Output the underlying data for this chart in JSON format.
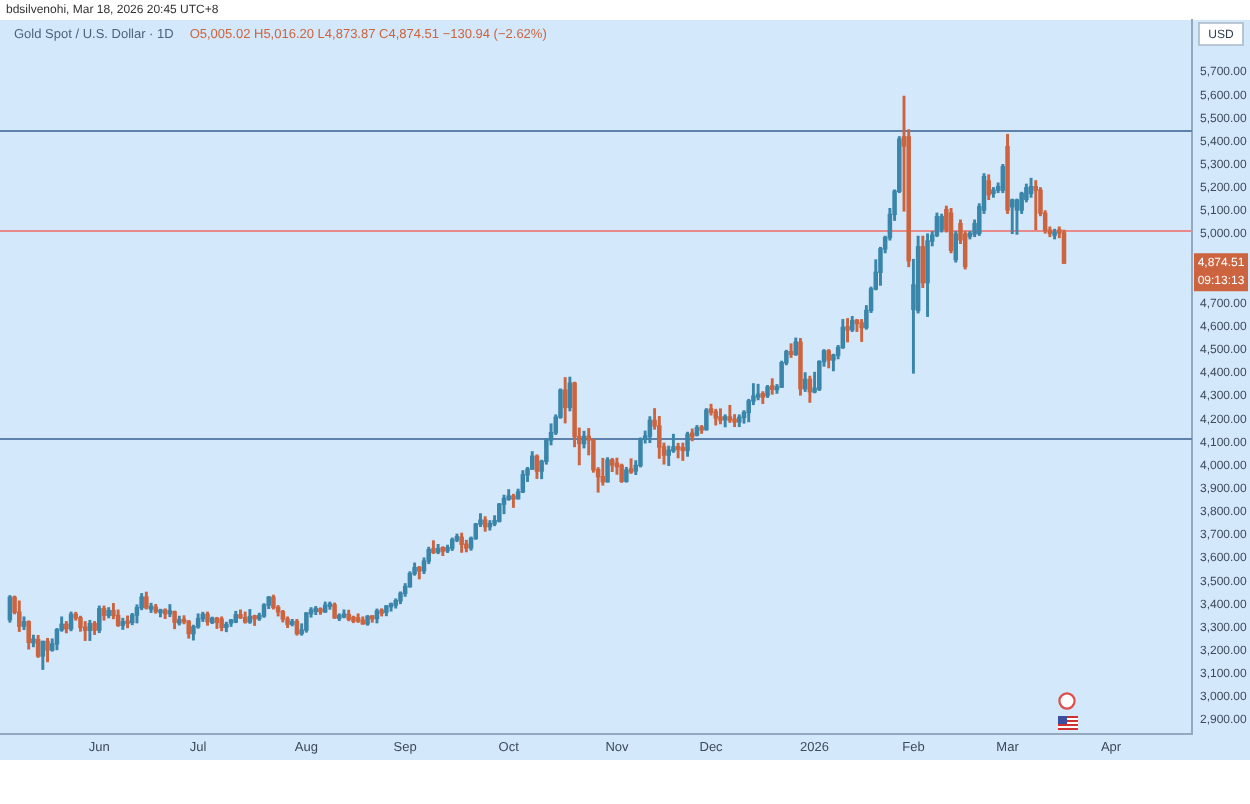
{
  "chart_data": {
    "type": "candlestick",
    "title": "Gold Spot / U.S. Dollar · 1D",
    "subtitle": "O5,005.02 H5,016.20 L4,873.87 C4,874.51 −130.94 (−2.62%)",
    "ylabel": "USD",
    "categories": [
      null,
      null,
      null,
      null,
      null,
      null,
      null,
      null,
      null,
      null,
      null,
      null,
      null,
      null,
      null,
      null,
      null,
      null,
      null,
      "Jun",
      null,
      null,
      null,
      null,
      null,
      null,
      null,
      null,
      null,
      null,
      null,
      null,
      null,
      null,
      null,
      null,
      null,
      null,
      null,
      null,
      "Jul",
      null,
      null,
      null,
      null,
      null,
      null,
      null,
      null,
      null,
      null,
      null,
      null,
      null,
      null,
      null,
      null,
      null,
      null,
      null,
      null,
      null,
      null,
      "Aug",
      null,
      null,
      null,
      null,
      null,
      null,
      null,
      null,
      null,
      null,
      null,
      null,
      null,
      null,
      null,
      null,
      null,
      null,
      null,
      null,
      "Sep",
      null,
      null,
      null,
      null,
      null,
      null,
      null,
      null,
      null,
      null,
      null,
      null,
      null,
      null,
      null,
      null,
      null,
      null,
      null,
      null,
      null,
      "Oct",
      null,
      null,
      null,
      null,
      null,
      null,
      null,
      null,
      null,
      null,
      null,
      null,
      null,
      null,
      null,
      null,
      null,
      null,
      null,
      null,
      null,
      null,
      "Nov",
      null,
      null,
      null,
      null,
      null,
      null,
      null,
      null,
      null,
      null,
      null,
      null,
      null,
      null,
      null,
      null,
      null,
      null,
      null,
      "Dec",
      null,
      null,
      null,
      null,
      null,
      null,
      null,
      null,
      null,
      null,
      null,
      null,
      null,
      null,
      null,
      null,
      null,
      null,
      null,
      null,
      null,
      "2026",
      null,
      null,
      null,
      null,
      null,
      null,
      null,
      null,
      null,
      null,
      null,
      null,
      null,
      null,
      null,
      null,
      null,
      null,
      null,
      null,
      "Feb",
      null,
      null,
      null,
      null,
      null,
      null,
      null,
      null,
      null,
      null,
      null,
      null,
      null,
      null,
      null,
      null,
      null,
      null,
      null,
      "Mar",
      null,
      null,
      null,
      null,
      null,
      null,
      null,
      null,
      null,
      null,
      null,
      null,
      null,
      null,
      null,
      null,
      null,
      null,
      null,
      null,
      null,
      "Apr",
      null,
      null,
      null,
      null,
      null,
      null,
      null,
      null,
      null,
      null,
      null,
      null,
      null,
      null,
      null,
      null
    ],
    "ohlc": [
      [
        3334,
        3437,
        3324,
        3431
      ],
      [
        3431,
        3435,
        3360,
        3366
      ],
      [
        3366,
        3414,
        3284,
        3306
      ],
      [
        3306,
        3345,
        3292,
        3325
      ],
      [
        3325,
        3328,
        3208,
        3236
      ],
      [
        3234,
        3266,
        3218,
        3250
      ],
      [
        3248,
        3265,
        3172,
        3177
      ],
      [
        3177,
        3240,
        3120,
        3240
      ],
      [
        3240,
        3252,
        3153,
        3203
      ],
      [
        3203,
        3250,
        3199,
        3229
      ],
      [
        3229,
        3295,
        3205,
        3290
      ],
      [
        3290,
        3345,
        3285,
        3314
      ],
      [
        3314,
        3325,
        3278,
        3295
      ],
      [
        3295,
        3366,
        3287,
        3357
      ],
      [
        3357,
        3365,
        3333,
        3342
      ],
      [
        3342,
        3348,
        3285,
        3301
      ],
      [
        3301,
        3325,
        3245,
        3288
      ],
      [
        3288,
        3330,
        3245,
        3317
      ],
      [
        3317,
        3325,
        3271,
        3289
      ],
      [
        3289,
        3392,
        3279,
        3381
      ],
      [
        3381,
        3392,
        3333,
        3353
      ],
      [
        3353,
        3385,
        3343,
        3373
      ],
      [
        3373,
        3403,
        3339,
        3352
      ],
      [
        3352,
        3375,
        3306,
        3310
      ],
      [
        3310,
        3339,
        3293,
        3325
      ],
      [
        3328,
        3349,
        3300,
        3318
      ],
      [
        3322,
        3360,
        3313,
        3354
      ],
      [
        3354,
        3397,
        3321,
        3386
      ],
      [
        3386,
        3446,
        3378,
        3432
      ],
      [
        3432,
        3452,
        3381,
        3385
      ],
      [
        3380,
        3404,
        3366,
        3392
      ],
      [
        3388,
        3399,
        3363,
        3369
      ],
      [
        3365,
        3378,
        3347,
        3375
      ],
      [
        3375,
        3380,
        3340,
        3360
      ],
      [
        3360,
        3398,
        3348,
        3372
      ],
      [
        3368,
        3370,
        3296,
        3323
      ],
      [
        3320,
        3348,
        3312,
        3333
      ],
      [
        3335,
        3350,
        3317,
        3325
      ],
      [
        3327,
        3329,
        3255,
        3274
      ],
      [
        3274,
        3309,
        3247,
        3303
      ],
      [
        3303,
        3358,
        3298,
        3338
      ],
      [
        3338,
        3365,
        3327,
        3357
      ],
      [
        3357,
        3366,
        3311,
        3326
      ],
      [
        3322,
        3344,
        3318,
        3340
      ],
      [
        3340,
        3343,
        3297,
        3322
      ],
      [
        3336,
        3345,
        3287,
        3301
      ],
      [
        3301,
        3322,
        3283,
        3313
      ],
      [
        3320,
        3334,
        3306,
        3332
      ],
      [
        3324,
        3369,
        3322,
        3355
      ],
      [
        3355,
        3375,
        3340,
        3343
      ],
      [
        3343,
        3366,
        3320,
        3324
      ],
      [
        3324,
        3377,
        3319,
        3347
      ],
      [
        3350,
        3352,
        3310,
        3338
      ],
      [
        3338,
        3361,
        3332,
        3352
      ],
      [
        3350,
        3402,
        3345,
        3397
      ],
      [
        3397,
        3433,
        3383,
        3431
      ],
      [
        3431,
        3439,
        3381,
        3387
      ],
      [
        3387,
        3394,
        3351,
        3368
      ],
      [
        3368,
        3373,
        3325,
        3337
      ],
      [
        3337,
        3345,
        3301,
        3314
      ],
      [
        3314,
        3334,
        3308,
        3326
      ],
      [
        3326,
        3334,
        3268,
        3274
      ],
      [
        3274,
        3315,
        3268,
        3289
      ],
      [
        3289,
        3363,
        3281,
        3363
      ],
      [
        3360,
        3385,
        3346,
        3376
      ],
      [
        3370,
        3390,
        3357,
        3382
      ],
      [
        3380,
        3384,
        3358,
        3368
      ],
      [
        3368,
        3409,
        3366,
        3396
      ],
      [
        3392,
        3409,
        3380,
        3402
      ],
      [
        3398,
        3405,
        3341,
        3342
      ],
      [
        3340,
        3358,
        3331,
        3352
      ],
      [
        3346,
        3375,
        3343,
        3358
      ],
      [
        3356,
        3374,
        3330,
        3336
      ],
      [
        3344,
        3348,
        3322,
        3328
      ],
      [
        3342,
        3358,
        3323,
        3328
      ],
      [
        3332,
        3345,
        3315,
        3316
      ],
      [
        3316,
        3351,
        3311,
        3348
      ],
      [
        3350,
        3351,
        3324,
        3338
      ],
      [
        3339,
        3379,
        3321,
        3371
      ],
      [
        3375,
        3380,
        3351,
        3362
      ],
      [
        3366,
        3394,
        3352,
        3393
      ],
      [
        3390,
        3405,
        3372,
        3402
      ],
      [
        3397,
        3423,
        3385,
        3416
      ],
      [
        3416,
        3453,
        3404,
        3448
      ],
      [
        3448,
        3489,
        3436,
        3477
      ],
      [
        3477,
        3540,
        3475,
        3533
      ],
      [
        3533,
        3578,
        3527,
        3559
      ],
      [
        3559,
        3563,
        3511,
        3545
      ],
      [
        3545,
        3600,
        3534,
        3587
      ],
      [
        3587,
        3646,
        3577,
        3636
      ],
      [
        3640,
        3674,
        3621,
        3624
      ],
      [
        3626,
        3658,
        3620,
        3641
      ],
      [
        3645,
        3648,
        3612,
        3630
      ],
      [
        3632,
        3655,
        3625,
        3645
      ],
      [
        3643,
        3686,
        3634,
        3679
      ],
      [
        3678,
        3703,
        3672,
        3692
      ],
      [
        3690,
        3707,
        3626,
        3660
      ],
      [
        3660,
        3676,
        3628,
        3644
      ],
      [
        3644,
        3690,
        3635,
        3685
      ],
      [
        3685,
        3749,
        3682,
        3747
      ],
      [
        3747,
        3791,
        3737,
        3764
      ],
      [
        3764,
        3778,
        3717,
        3736
      ],
      [
        3736,
        3761,
        3722,
        3749
      ],
      [
        3748,
        3782,
        3741,
        3762
      ],
      [
        3760,
        3835,
        3757,
        3833
      ],
      [
        3833,
        3871,
        3793,
        3858
      ],
      [
        3855,
        3895,
        3851,
        3868
      ],
      [
        3868,
        3875,
        3820,
        3856
      ],
      [
        3857,
        3897,
        3856,
        3886
      ],
      [
        3886,
        3977,
        3884,
        3960
      ],
      [
        3960,
        3991,
        3932,
        3985
      ],
      [
        3985,
        4059,
        3984,
        4040
      ],
      [
        4040,
        4045,
        3945,
        3976
      ],
      [
        3976,
        4022,
        3944,
        4018
      ],
      [
        4018,
        4116,
        4007,
        4110
      ],
      [
        4110,
        4179,
        4090,
        4142
      ],
      [
        4142,
        4218,
        4135,
        4209
      ],
      [
        4209,
        4330,
        4205,
        4326
      ],
      [
        4326,
        4379,
        4185,
        4251
      ],
      [
        4251,
        4381,
        4237,
        4356
      ],
      [
        4356,
        4359,
        4082,
        4125
      ],
      [
        4125,
        4161,
        4004,
        4095
      ],
      [
        4095,
        4147,
        4077,
        4126
      ],
      [
        4126,
        4159,
        4047,
        4111
      ],
      [
        4111,
        4112,
        3972,
        3982
      ],
      [
        3982,
        3990,
        3886,
        3952
      ],
      [
        3952,
        4030,
        3916,
        3930
      ],
      [
        3930,
        4033,
        3929,
        4024
      ],
      [
        4024,
        4030,
        3975,
        4002
      ],
      [
        4010,
        4031,
        3963,
        3995
      ],
      [
        4000,
        4005,
        3928,
        3932
      ],
      [
        3932,
        3991,
        3929,
        3980
      ],
      [
        3985,
        4028,
        3967,
        3972
      ],
      [
        3977,
        4020,
        3962,
        4000
      ],
      [
        4000,
        4118,
        3995,
        4115
      ],
      [
        4115,
        4148,
        4098,
        4127
      ],
      [
        4127,
        4210,
        4100,
        4195
      ],
      [
        4195,
        4245,
        4158,
        4171
      ],
      [
        4171,
        4211,
        4032,
        4080
      ],
      [
        4080,
        4096,
        4007,
        4045
      ],
      [
        4045,
        4083,
        4001,
        4066
      ],
      [
        4064,
        4134,
        4058,
        4080
      ],
      [
        4082,
        4095,
        4034,
        4070
      ],
      [
        4077,
        4096,
        4023,
        4065
      ],
      [
        4065,
        4143,
        4041,
        4135
      ],
      [
        4140,
        4157,
        4108,
        4125
      ],
      [
        4132,
        4172,
        4129,
        4163
      ],
      [
        4166,
        4172,
        4140,
        4154
      ],
      [
        4155,
        4245,
        4154,
        4239
      ],
      [
        4245,
        4264,
        4219,
        4230
      ],
      [
        4232,
        4242,
        4176,
        4206
      ],
      [
        4210,
        4244,
        4181,
        4196
      ],
      [
        4198,
        4218,
        4168,
        4210
      ],
      [
        4210,
        4259,
        4187,
        4196
      ],
      [
        4200,
        4219,
        4169,
        4188
      ],
      [
        4189,
        4218,
        4169,
        4208
      ],
      [
        4208,
        4236,
        4184,
        4229
      ],
      [
        4229,
        4285,
        4190,
        4279
      ],
      [
        4279,
        4353,
        4264,
        4300
      ],
      [
        4296,
        4350,
        4285,
        4308
      ],
      [
        4310,
        4318,
        4269,
        4296
      ],
      [
        4302,
        4345,
        4295,
        4339
      ],
      [
        4344,
        4374,
        4309,
        4330
      ],
      [
        4328,
        4349,
        4313,
        4340
      ],
      [
        4339,
        4450,
        4338,
        4444
      ],
      [
        4444,
        4497,
        4436,
        4492
      ],
      [
        4492,
        4525,
        4468,
        4480
      ],
      [
        4480,
        4550,
        4477,
        4533
      ],
      [
        4533,
        4548,
        4305,
        4332
      ],
      [
        4332,
        4400,
        4321,
        4372
      ],
      [
        4372,
        4385,
        4274,
        4319
      ],
      [
        4318,
        4402,
        4315,
        4334
      ],
      [
        4330,
        4452,
        4325,
        4449
      ],
      [
        4449,
        4500,
        4430,
        4495
      ],
      [
        4495,
        4500,
        4423,
        4456
      ],
      [
        4456,
        4480,
        4410,
        4477
      ],
      [
        4477,
        4518,
        4462,
        4510
      ],
      [
        4510,
        4630,
        4507,
        4597
      ],
      [
        4600,
        4634,
        4535,
        4586
      ],
      [
        4587,
        4643,
        4580,
        4626
      ],
      [
        4628,
        4630,
        4580,
        4614
      ],
      [
        4616,
        4630,
        4537,
        4596
      ],
      [
        4596,
        4690,
        4590,
        4670
      ],
      [
        4670,
        4770,
        4662,
        4763
      ],
      [
        4763,
        4888,
        4760,
        4835
      ],
      [
        4835,
        4942,
        4780,
        4936
      ],
      [
        4936,
        4990,
        4920,
        4985
      ],
      [
        4985,
        5110,
        4975,
        5085
      ],
      [
        5085,
        5190,
        5060,
        5185
      ],
      [
        5185,
        5420,
        5180,
        5410
      ],
      [
        5420,
        5595,
        5100,
        5380
      ],
      [
        5420,
        5450,
        4860,
        4885
      ],
      [
        4675,
        4890,
        4400,
        4780
      ],
      [
        4670,
        4990,
        4660,
        4945
      ],
      [
        4945,
        4990,
        4770,
        4790
      ],
      [
        4790,
        5000,
        4645,
        4970
      ],
      [
        4970,
        5010,
        4950,
        4995
      ],
      [
        4995,
        5090,
        4990,
        5075
      ],
      [
        5020,
        5085,
        5010,
        5075
      ],
      [
        5105,
        5120,
        5010,
        5020
      ],
      [
        5090,
        5110,
        4920,
        4930
      ],
      [
        4890,
        5010,
        4880,
        5000
      ],
      [
        5045,
        5060,
        4960,
        4975
      ],
      [
        5000,
        5010,
        4850,
        4860
      ],
      [
        4990,
        5010,
        4980,
        5003
      ],
      [
        5000,
        5060,
        4990,
        5045
      ],
      [
        5003,
        5130,
        4995,
        5118
      ],
      [
        5104,
        5260,
        5090,
        5248
      ],
      [
        5230,
        5255,
        5150,
        5170
      ],
      [
        5176,
        5200,
        5160,
        5190
      ],
      [
        5190,
        5220,
        5180,
        5205
      ],
      [
        5190,
        5300,
        5180,
        5291
      ],
      [
        5378,
        5430,
        5090,
        5104
      ],
      [
        5118,
        5150,
        5003,
        5147
      ],
      [
        5104,
        5150,
        5000,
        5147
      ],
      [
        5104,
        5180,
        5090,
        5176
      ],
      [
        5150,
        5215,
        5140,
        5200
      ],
      [
        5176,
        5240,
        5160,
        5205
      ],
      [
        5205,
        5230,
        5020,
        5190
      ],
      [
        5190,
        5200,
        5080,
        5090
      ],
      [
        5090,
        5100,
        5005,
        5017
      ],
      [
        5017,
        5030,
        4990,
        5003
      ],
      [
        4995,
        5020,
        4980,
        5008
      ],
      [
        5018,
        5030,
        4985,
        5005
      ],
      [
        5005.02,
        5016.2,
        4873.87,
        4874.51
      ],
      null,
      null,
      null,
      null,
      null,
      null,
      null,
      null,
      null,
      null,
      null,
      null,
      null,
      null,
      null,
      null,
      null,
      null,
      null,
      null,
      null,
      null,
      null,
      null,
      null,
      null
    ],
    "colors": [
      "#3a85aa",
      "#cc6440",
      "#cc6440",
      "#3a85aa",
      "#cc6440",
      "#3a85aa",
      "#cc6440",
      "#3a85aa",
      "#cc6440",
      "#3a85aa",
      "#3a85aa",
      "#3a85aa",
      "#cc6440",
      "#3a85aa",
      "#cc6440",
      "#cc6440",
      "#cc6440",
      "#3a85aa",
      "#cc6440",
      "#3a85aa",
      "#cc6440",
      "#3a85aa",
      "#cc6440",
      "#cc6440",
      "#3a85aa",
      "#cc6440",
      "#3a85aa",
      "#3a85aa",
      "#3a85aa",
      "#cc6440",
      "#3a85aa",
      "#cc6440",
      "#3a85aa",
      "#cc6440",
      "#3a85aa",
      "#cc6440",
      "#3a85aa",
      "#cc6440",
      "#cc6440",
      "#3a85aa",
      "#3a85aa",
      "#3a85aa",
      "#cc6440",
      "#3a85aa",
      "#cc6440",
      "#cc6440",
      "#3a85aa",
      "#3a85aa",
      "#3a85aa",
      "#cc6440",
      "#cc6440",
      "#3a85aa",
      "#cc6440",
      "#3a85aa",
      "#3a85aa",
      "#3a85aa",
      "#cc6440",
      "#cc6440",
      "#cc6440",
      "#cc6440",
      "#3a85aa",
      "#cc6440",
      "#3a85aa",
      "#3a85aa",
      "#3a85aa",
      "#3a85aa",
      "#cc6440",
      "#3a85aa",
      "#3a85aa",
      "#cc6440",
      "#3a85aa",
      "#3a85aa",
      "#cc6440",
      "#cc6440",
      "#cc6440",
      "#cc6440",
      "#3a85aa",
      "#cc6440",
      "#3a85aa",
      "#cc6440",
      "#3a85aa",
      "#3a85aa",
      "#3a85aa",
      "#3a85aa",
      "#3a85aa",
      "#3a85aa",
      "#3a85aa",
      "#cc6440",
      "#3a85aa",
      "#3a85aa",
      "#cc6440",
      "#3a85aa",
      "#cc6440",
      "#3a85aa",
      "#3a85aa",
      "#3a85aa",
      "#cc6440",
      "#cc6440",
      "#3a85aa",
      "#3a85aa",
      "#3a85aa",
      "#cc6440",
      "#3a85aa",
      "#3a85aa",
      "#3a85aa",
      "#3a85aa",
      "#3a85aa",
      "#cc6440",
      "#3a85aa",
      "#3a85aa",
      "#3a85aa",
      "#3a85aa",
      "#cc6440",
      "#3a85aa",
      "#3a85aa",
      "#3a85aa",
      "#3a85aa",
      "#3a85aa",
      "#cc6440",
      "#3a85aa",
      "#cc6440",
      "#cc6440",
      "#3a85aa",
      "#cc6440",
      "#cc6440",
      "#cc6440",
      "#cc6440",
      "#3a85aa",
      "#cc6440",
      "#cc6440",
      "#cc6440",
      "#3a85aa",
      "#cc6440",
      "#3a85aa",
      "#3a85aa",
      "#3a85aa",
      "#3a85aa",
      "#cc6440",
      "#cc6440",
      "#cc6440",
      "#3a85aa",
      "#3a85aa",
      "#cc6440",
      "#cc6440",
      "#3a85aa",
      "#cc6440",
      "#3a85aa",
      "#cc6440",
      "#3a85aa",
      "#cc6440",
      "#cc6440",
      "#cc6440",
      "#3a85aa",
      "#cc6440",
      "#cc6440",
      "#3a85aa",
      "#3a85aa",
      "#3a85aa",
      "#3a85aa",
      "#3a85aa",
      "#cc6440",
      "#3a85aa",
      "#cc6440",
      "#3a85aa",
      "#3a85aa",
      "#3a85aa",
      "#cc6440",
      "#3a85aa",
      "#cc6440",
      "#3a85aa",
      "#cc6440",
      "#3a85aa",
      "#3a85aa",
      "#3a85aa",
      "#cc6440",
      "#3a85aa",
      "#3a85aa",
      "#3a85aa",
      "#cc6440",
      "#3a85aa",
      "#cc6440",
      "#cc6440",
      "#3a85aa",
      "#3a85aa",
      "#3a85aa",
      "#3a85aa",
      "#3a85aa",
      "#3a85aa",
      "#3a85aa",
      "#3a85aa",
      "#cc6440",
      "#cc6440",
      "#3a85aa",
      "#3a85aa",
      "#cc6440",
      "#3a85aa",
      "#3a85aa",
      "#3a85aa",
      "#3a85aa",
      "#cc6440",
      "#cc6440",
      "#3a85aa",
      "#cc6440",
      "#cc6440",
      "#3a85aa",
      "#3a85aa",
      "#3a85aa",
      "#3a85aa",
      "#cc6440",
      "#3a85aa",
      "#3a85aa",
      "#3a85aa",
      "#cc6440",
      "#3a85aa",
      "#3a85aa",
      "#3a85aa",
      "#3a85aa",
      "#3a85aa",
      "#cc6440",
      "#cc6440",
      "#cc6440",
      "#cc6440",
      "#3a85aa",
      "#cc6440",
      "#cc6440",
      null,
      null,
      null,
      null,
      null,
      null,
      null,
      null,
      null,
      null,
      null,
      null,
      null,
      null,
      null,
      null,
      null,
      null,
      null,
      null,
      null,
      null,
      null,
      null,
      null,
      null
    ],
    "ylim": [
      2840,
      5925
    ],
    "yticks": [
      {
        "value": 2900,
        "label": "2,900.00"
      },
      {
        "value": 3000,
        "label": "3,000.00"
      },
      {
        "value": 3100,
        "label": "3,100.00"
      },
      {
        "value": 3200,
        "label": "3,200.00"
      },
      {
        "value": 3300,
        "label": "3,300.00"
      },
      {
        "value": 3400,
        "label": "3,400.00"
      },
      {
        "value": 3500,
        "label": "3,500.00"
      },
      {
        "value": 3600,
        "label": "3,600.00"
      },
      {
        "value": 3700,
        "label": "3,700.00"
      },
      {
        "value": 3800,
        "label": "3,800.00"
      },
      {
        "value": 3900,
        "label": "3,900.00"
      },
      {
        "value": 4000,
        "label": "4,000.00"
      },
      {
        "value": 4100,
        "label": "4,100.00"
      },
      {
        "value": 4200,
        "label": "4,200.00"
      },
      {
        "value": 4300,
        "label": "4,300.00"
      },
      {
        "value": 4400,
        "label": "4,400.00"
      },
      {
        "value": 4500,
        "label": "4,500.00"
      },
      {
        "value": 4600,
        "label": "4,600.00"
      },
      {
        "value": 4700,
        "label": "4,700.00"
      },
      {
        "value": 5000,
        "label": "5,000.00"
      },
      {
        "value": 5100,
        "label": "5,100.00"
      },
      {
        "value": 5200,
        "label": "5,200.00"
      },
      {
        "value": 5300,
        "label": "5,300.00"
      },
      {
        "value": 5400,
        "label": "5,400.00"
      },
      {
        "value": 5500,
        "label": "5,500.00"
      },
      {
        "value": 5600,
        "label": "5,600.00"
      },
      {
        "value": 5700,
        "label": "5,700.00"
      }
    ],
    "ref_lines": [
      {
        "axis": "y",
        "value": 5450,
        "color": "#5f82ad"
      },
      {
        "axis": "y",
        "value": 5020,
        "color": "#e8898a"
      },
      {
        "axis": "y",
        "value": 4120,
        "color": "#5f82ad"
      }
    ],
    "annotations": [
      "bdsilvenohi, Mar 18, 2026 20:45 UTC+8",
      "4,874.51",
      "09:13:13"
    ]
  }
}
